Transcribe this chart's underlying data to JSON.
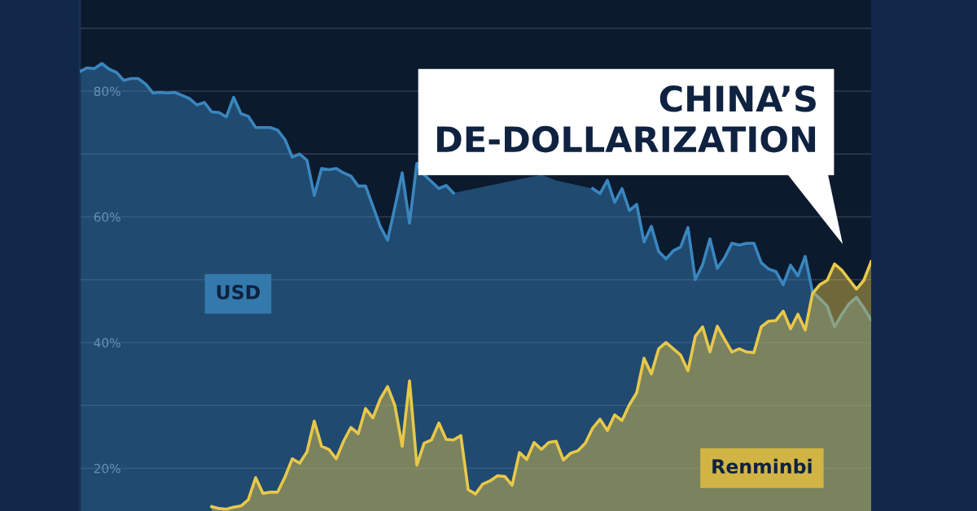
{
  "chart_data": {
    "type": "area",
    "title": "CHINA’S\nDE-DOLLARIZATION",
    "categories": [
      null,
      null,
      null,
      null,
      null,
      null,
      null,
      null,
      null,
      null,
      null,
      null,
      null,
      null,
      null,
      null,
      null,
      null,
      null,
      null,
      null,
      null,
      null,
      null,
      null,
      null,
      null,
      null,
      null,
      null,
      null,
      null,
      null,
      null,
      null,
      null,
      null,
      null,
      null,
      null,
      null,
      null,
      null,
      null,
      null,
      null,
      null,
      null,
      null,
      null,
      null,
      null,
      null,
      null,
      null,
      null,
      null,
      null,
      null,
      null,
      null,
      null,
      null,
      null,
      null,
      null,
      null,
      null,
      null,
      null,
      null,
      null,
      null,
      null,
      null,
      null,
      null,
      null,
      null,
      null,
      null,
      null,
      null,
      null,
      null,
      null,
      null,
      null,
      null,
      null,
      null,
      null,
      null,
      null,
      null,
      null,
      null,
      null,
      null,
      null,
      null,
      null,
      null,
      null,
      null,
      null,
      null,
      null,
      null
    ],
    "series": [
      {
        "name": "USD",
        "color": "#3a86bf",
        "values": [
          83.1,
          83.7,
          83.6,
          84.4,
          83.5,
          83.0,
          81.7,
          82.0,
          82.0,
          81.1,
          79.7,
          79.8,
          79.7,
          79.8,
          79.3,
          78.8,
          77.8,
          78.2,
          76.7,
          76.6,
          75.9,
          79.0,
          76.4,
          76.0,
          74.2,
          74.2,
          74.2,
          73.8,
          72.3,
          69.5,
          70.0,
          69.0,
          63.4,
          67.7,
          67.5,
          67.7,
          67.0,
          66.5,
          64.9,
          64.9,
          61.7,
          58.5,
          56.3,
          61.5,
          67.0,
          59.0,
          68.5,
          66.7,
          65.6,
          64.5,
          65.0,
          63.8,
          null,
          null,
          null,
          null,
          null,
          null,
          null,
          null,
          null,
          null,
          null,
          66.7,
          null,
          65.8,
          null,
          null,
          null,
          null,
          64.5,
          63.7,
          65.8,
          62.3,
          64.5,
          61.0,
          62.0,
          56.0,
          58.5,
          54.5,
          53.3,
          54.6,
          55.2,
          58.3,
          50.0,
          52.4,
          56.5,
          51.8,
          53.5,
          55.8,
          55.5,
          55.8,
          55.8,
          52.7,
          51.7,
          51.3,
          49.2,
          52.3,
          50.6,
          53.7,
          48.0,
          47.0,
          45.8,
          42.5,
          44.5,
          46.2,
          47.2,
          45.5,
          43.6
        ]
      },
      {
        "name": "Renminbi",
        "color": "#e8c84a",
        "values": [
          null,
          null,
          null,
          null,
          null,
          null,
          null,
          null,
          null,
          null,
          null,
          null,
          null,
          null,
          null,
          null,
          null,
          null,
          13.9,
          13.6,
          13.5,
          13.8,
          14.0,
          15.0,
          18.5,
          16.0,
          16.2,
          16.2,
          18.6,
          21.5,
          20.8,
          22.6,
          27.5,
          23.5,
          23.0,
          21.5,
          24.3,
          26.5,
          25.5,
          29.5,
          28.0,
          31.0,
          33.0,
          30.0,
          23.5,
          33.9,
          20.5,
          24.0,
          24.5,
          27.2,
          24.6,
          24.5,
          25.2,
          16.6,
          15.9,
          17.5,
          18.0,
          18.8,
          18.7,
          17.3,
          22.5,
          21.4,
          24.1,
          23.0,
          24.1,
          24.3,
          21.3,
          22.4,
          22.8,
          24.0,
          26.4,
          27.8,
          26.0,
          28.5,
          27.6,
          30.1,
          32.0,
          37.5,
          35.0,
          39.0,
          40.0,
          39.0,
          38.0,
          35.5,
          41.0,
          42.5,
          38.5,
          42.6,
          40.5,
          38.5,
          39.0,
          38.5,
          38.4,
          42.5,
          43.4,
          43.5,
          45.0,
          42.2,
          44.5,
          42.0,
          47.8,
          49.2,
          49.9,
          52.5,
          51.5,
          50.0,
          48.5,
          49.9,
          52.9
        ]
      }
    ],
    "ylim": [
      13.2,
      94.5
    ],
    "yticks": [
      {
        "value": 20,
        "label": "20%"
      },
      {
        "value": 30,
        "label": null
      },
      {
        "value": 40,
        "label": "40%"
      },
      {
        "value": 50,
        "label": null
      },
      {
        "value": 60,
        "label": "60%"
      },
      {
        "value": 70,
        "label": null
      },
      {
        "value": 80,
        "label": "80%"
      },
      {
        "value": 90,
        "label": null
      }
    ],
    "grid": "y",
    "tick_labels": "y"
  }
}
